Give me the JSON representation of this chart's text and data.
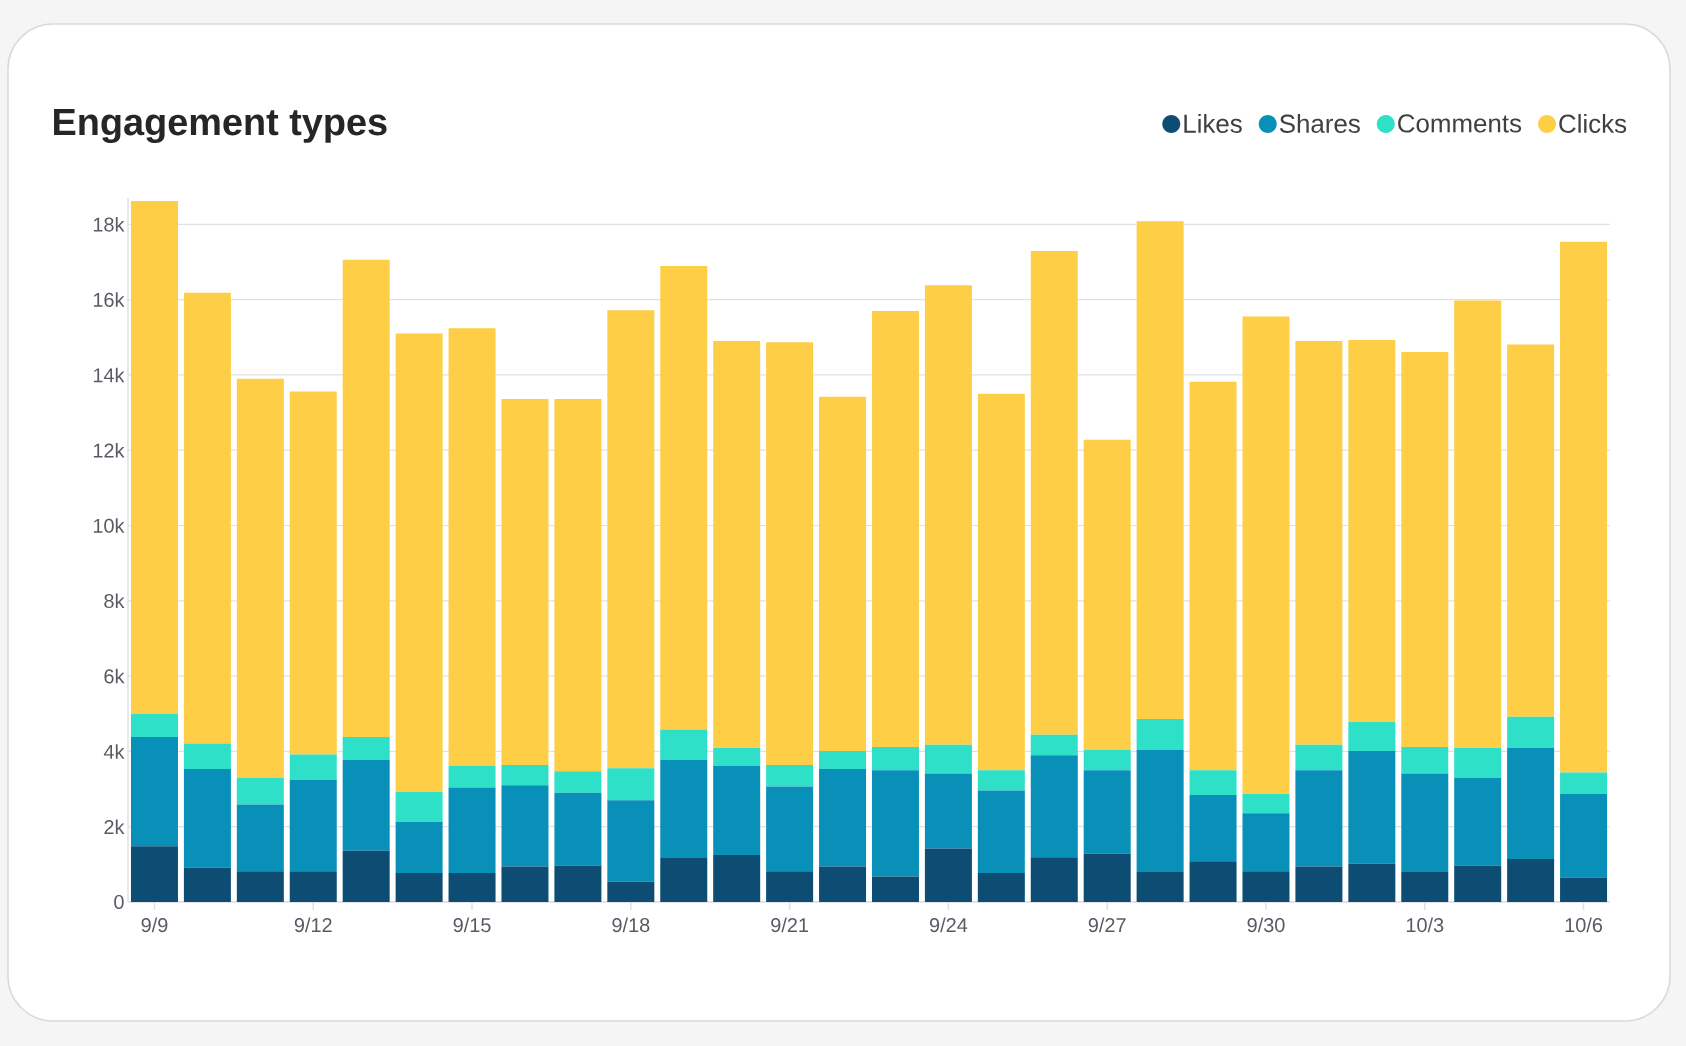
{
  "chart_data": {
    "type": "bar",
    "title": "Engagement types",
    "stacked": true,
    "grid": "y",
    "legend": "top right",
    "categories": [
      "9/9",
      null,
      null,
      "9/12",
      null,
      null,
      "9/15",
      null,
      null,
      "9/18",
      null,
      null,
      "9/21",
      null,
      null,
      "9/24",
      null,
      null,
      "9/27",
      null,
      null,
      "9/30",
      null,
      null,
      "10/3",
      null,
      null,
      "10/6"
    ],
    "ylim": [
      0,
      18700
    ],
    "yticks": [
      0,
      {
        "value": 2000,
        "label": "2k"
      },
      {
        "value": 4000,
        "label": "4k"
      },
      {
        "value": 6000,
        "label": "6k"
      },
      {
        "value": 8000,
        "label": "8k"
      },
      {
        "value": 10000,
        "label": "10k"
      },
      {
        "value": 12000,
        "label": "12k"
      },
      {
        "value": 14000,
        "label": "14k"
      },
      {
        "value": 16000,
        "label": "16k"
      },
      {
        "value": 18000,
        "label": "18k"
      }
    ],
    "series": [
      {
        "name": "Likes",
        "color": "#0d4d74",
        "values": [
          1480,
          910,
          820,
          820,
          1360,
          770,
          770,
          940,
          970,
          540,
          1170,
          1250,
          820,
          940,
          680,
          1420,
          770,
          1190,
          1280,
          800,
          1080,
          820,
          940,
          1020,
          800,
          970,
          1140,
          650
        ]
      },
      {
        "name": "Shares",
        "color": "#0890b8",
        "values": [
          2900,
          2620,
          1770,
          2420,
          2420,
          1360,
          2270,
          2160,
          1930,
          2160,
          2610,
          2360,
          2250,
          2590,
          2820,
          1990,
          2190,
          2710,
          2220,
          3240,
          1760,
          1540,
          2560,
          2990,
          2610,
          2330,
          2950,
          2220
        ]
      },
      {
        "name": "Comments",
        "color": "#2ee0c8",
        "values": [
          620,
          680,
          710,
          680,
          600,
          800,
          570,
          540,
          570,
          850,
          800,
          480,
          570,
          480,
          620,
          770,
          540,
          540,
          540,
          820,
          660,
          510,
          680,
          770,
          710,
          790,
          830,
          570
        ]
      },
      {
        "name": "Clicks",
        "color": "#fdce46",
        "values": [
          13620,
          11970,
          10600,
          9640,
          12680,
          12170,
          11630,
          9720,
          9890,
          12170,
          12310,
          10810,
          11230,
          9410,
          11580,
          12200,
          10000,
          12850,
          8240,
          13220,
          10320,
          12680,
          10720,
          10150,
          10490,
          11890,
          9890,
          14100
        ]
      }
    ]
  }
}
